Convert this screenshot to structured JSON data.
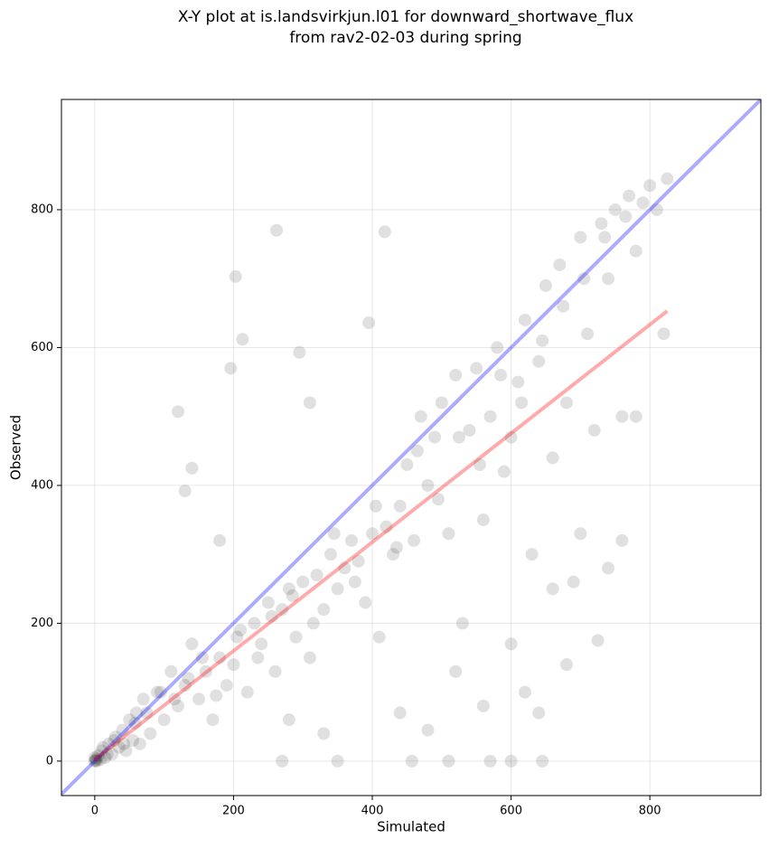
{
  "chart_data": {
    "type": "scatter",
    "title": [
      "X-Y plot at is.landsvirkjun.l01 for downward_shortwave_flux",
      "from rav2-02-03 during spring"
    ],
    "xlabel": "Simulated",
    "ylabel": "Observed",
    "xlim": [
      -48,
      960
    ],
    "ylim": [
      -50,
      960
    ],
    "xticks": [
      0,
      200,
      400,
      600,
      800
    ],
    "yticks": [
      0,
      200,
      400,
      600,
      800
    ],
    "grid": true,
    "series": [
      {
        "color": "#000000",
        "x": [
          0,
          1,
          3,
          0,
          2,
          5,
          8,
          10,
          15,
          20,
          25,
          30,
          35,
          40,
          45,
          50,
          55,
          60,
          65,
          70,
          80,
          90,
          100,
          110,
          120,
          130,
          140,
          150,
          160,
          170,
          180,
          190,
          200,
          210,
          220,
          230,
          240,
          250,
          260,
          270,
          280,
          290,
          300,
          310,
          320,
          330,
          340,
          350,
          360,
          370,
          380,
          390,
          400,
          410,
          420,
          430,
          440,
          450,
          460,
          470,
          480,
          490,
          500,
          510,
          520,
          530,
          540,
          550,
          560,
          570,
          580,
          590,
          600,
          610,
          620,
          630,
          640,
          650,
          660,
          670,
          680,
          690,
          700,
          710,
          720,
          730,
          740,
          750,
          760,
          770,
          780,
          790,
          800,
          810,
          820,
          825,
          196,
          262,
          418,
          203,
          213,
          120,
          295,
          395,
          140,
          457,
          600,
          510,
          350,
          270,
          570,
          645,
          130,
          310,
          180,
          280,
          330,
          440,
          480,
          520,
          560,
          600,
          620,
          640,
          680,
          725,
          740,
          760,
          780,
          700,
          660,
          12,
          18,
          28,
          42,
          58,
          75,
          95,
          115,
          135,
          155,
          175,
          205,
          235,
          255,
          285,
          315,
          345,
          375,
          405,
          435,
          465,
          495,
          525,
          555,
          585,
          615,
          645,
          675,
          705,
          735,
          765
        ],
        "values": [
          0,
          1,
          0,
          5,
          3,
          8,
          2,
          15,
          5,
          25,
          10,
          35,
          20,
          45,
          15,
          60,
          30,
          70,
          25,
          90,
          40,
          100,
          60,
          130,
          80,
          110,
          170,
          90,
          130,
          60,
          150,
          110,
          140,
          190,
          100,
          200,
          170,
          230,
          130,
          220,
          250,
          180,
          260,
          150,
          270,
          220,
          300,
          250,
          280,
          320,
          290,
          230,
          330,
          180,
          340,
          300,
          370,
          430,
          320,
          500,
          400,
          470,
          520,
          330,
          560,
          200,
          480,
          570,
          350,
          500,
          600,
          420,
          470,
          550,
          640,
          300,
          580,
          690,
          440,
          720,
          520,
          260,
          760,
          620,
          480,
          780,
          700,
          800,
          500,
          820,
          740,
          810,
          835,
          800,
          620,
          845,
          570,
          770,
          768,
          703,
          612,
          507,
          593,
          636,
          425,
          0,
          0,
          0,
          0,
          0,
          0,
          0,
          392,
          520,
          320,
          60,
          40,
          70,
          45,
          130,
          80,
          170,
          100,
          70,
          140,
          175,
          280,
          320,
          500,
          330,
          250,
          20,
          10,
          30,
          25,
          55,
          70,
          100,
          90,
          120,
          150,
          95,
          180,
          150,
          210,
          240,
          200,
          330,
          260,
          370,
          310,
          450,
          380,
          470,
          430,
          560,
          520,
          610,
          660,
          700,
          760,
          790
        ]
      }
    ],
    "lines": [
      {
        "color": "#0000ff",
        "x": [
          -48,
          960
        ],
        "values": [
          -48,
          960
        ]
      },
      {
        "color": "#ff0000",
        "x": [
          0,
          825
        ],
        "values": [
          2,
          653
        ]
      }
    ]
  }
}
